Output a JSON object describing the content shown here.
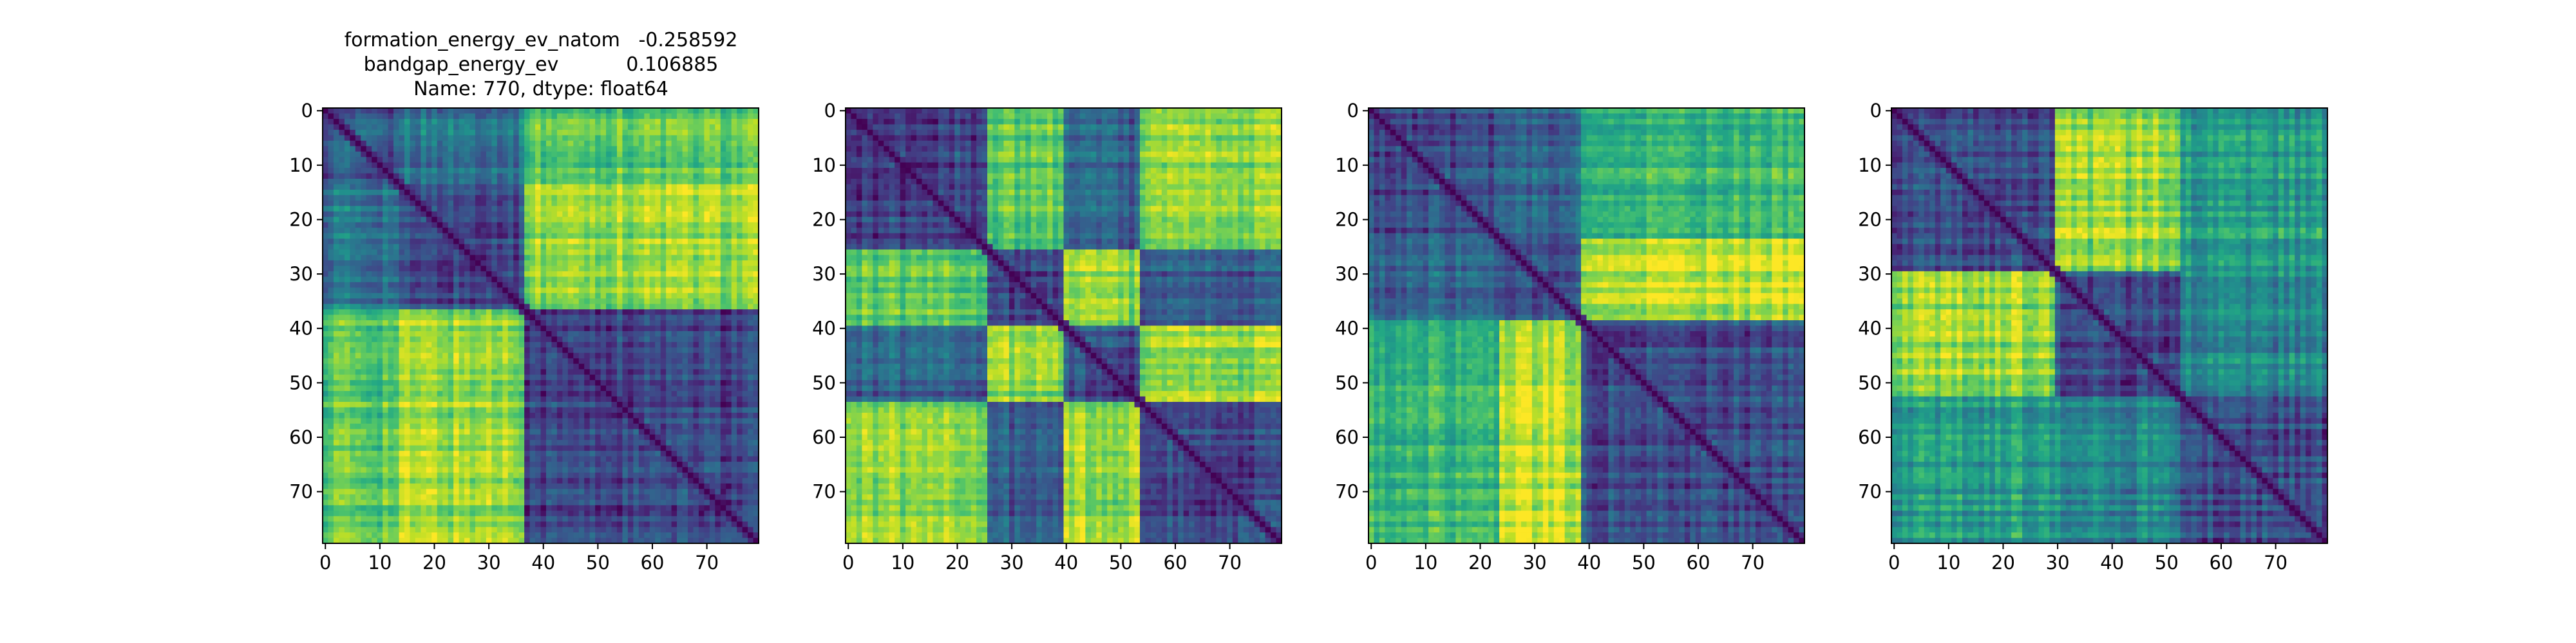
{
  "title_lines": [
    "formation_energy_ev_natom   -0.258592",
    "bandgap_energy_ev           0.106885",
    "Name: 770, dtype: float64"
  ],
  "chart_data": [
    {
      "type": "heatmap",
      "n": 80,
      "colormap": "viridis",
      "xticks": [
        0,
        10,
        20,
        30,
        40,
        50,
        60,
        70
      ],
      "yticks": [
        0,
        10,
        20,
        30,
        40,
        50,
        60,
        70
      ],
      "block_edges": [
        0,
        14,
        37,
        80
      ],
      "block_means": [
        [
          0.25,
          0.4,
          0.75
        ],
        [
          0.4,
          0.22,
          0.85
        ],
        [
          0.75,
          0.85,
          0.2
        ]
      ]
    },
    {
      "type": "heatmap",
      "n": 80,
      "colormap": "viridis",
      "xticks": [
        0,
        10,
        20,
        30,
        40,
        50,
        60,
        70
      ],
      "yticks": [
        0,
        10,
        20,
        30,
        40,
        50,
        60,
        70
      ],
      "block_edges": [
        0,
        26,
        40,
        54,
        80
      ],
      "block_means": [
        [
          0.2,
          0.75,
          0.3,
          0.85
        ],
        [
          0.75,
          0.2,
          0.8,
          0.3
        ],
        [
          0.3,
          0.8,
          0.2,
          0.85
        ],
        [
          0.85,
          0.3,
          0.85,
          0.22
        ]
      ]
    },
    {
      "type": "heatmap",
      "n": 80,
      "colormap": "viridis",
      "xticks": [
        0,
        10,
        20,
        30,
        40,
        50,
        60,
        70
      ],
      "yticks": [
        0,
        10,
        20,
        30,
        40,
        50,
        60,
        70
      ],
      "block_edges": [
        0,
        24,
        39,
        80
      ],
      "block_means": [
        [
          0.22,
          0.3,
          0.65
        ],
        [
          0.3,
          0.22,
          0.9
        ],
        [
          0.65,
          0.9,
          0.22
        ]
      ]
    },
    {
      "type": "heatmap",
      "n": 80,
      "colormap": "viridis",
      "xticks": [
        0,
        10,
        20,
        30,
        40,
        50,
        60,
        70
      ],
      "yticks": [
        0,
        10,
        20,
        30,
        40,
        50,
        60,
        70
      ],
      "block_edges": [
        0,
        30,
        53,
        80
      ],
      "block_means": [
        [
          0.25,
          0.85,
          0.55
        ],
        [
          0.85,
          0.22,
          0.45
        ],
        [
          0.55,
          0.45,
          0.22
        ]
      ]
    }
  ]
}
